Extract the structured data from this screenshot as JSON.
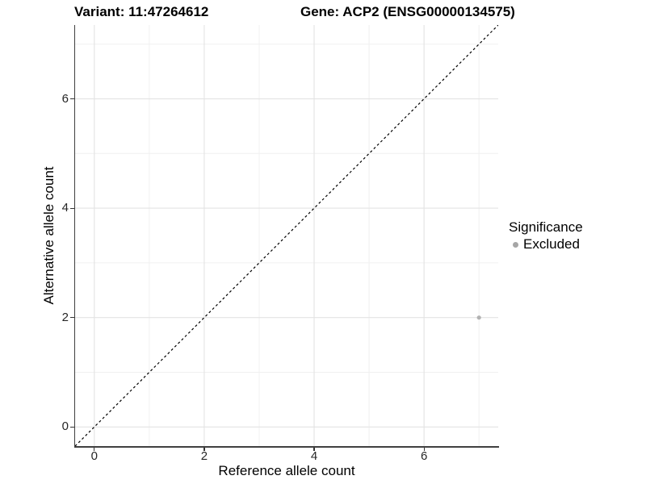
{
  "titles": {
    "variant": "Variant: 11:47264612",
    "gene": "Gene: ACP2 (ENSG00000134575)"
  },
  "chart_data": {
    "type": "scatter",
    "title_left": "Variant: 11:47264612",
    "title_right": "Gene: ACP2 (ENSG00000134575)",
    "xlabel": "Reference allele count",
    "ylabel": "Alternative allele count",
    "xlim": [
      -0.35,
      7.35
    ],
    "ylim": [
      -0.35,
      7.35
    ],
    "x_major_ticks": [
      0,
      2,
      4,
      6
    ],
    "y_major_ticks": [
      0,
      2,
      4,
      6
    ],
    "x_minor_gridlines": [
      1,
      3,
      5,
      7
    ],
    "y_minor_gridlines": [
      1,
      3,
      5,
      7
    ],
    "grid": "major and minor gridlines on white panel",
    "legend_position": "right",
    "series": [
      {
        "name": "Excluded",
        "color": "#b2b2b2",
        "points": [
          {
            "x": 7,
            "y": 2
          }
        ]
      }
    ],
    "reference_line": {
      "description": "identity line y = x",
      "style": "dashed",
      "color": "#000000",
      "x1": -0.35,
      "y1": -0.35,
      "x2": 7.35,
      "y2": 7.35
    },
    "legend": {
      "title": "Significance",
      "entries": [
        {
          "label": "Excluded",
          "color": "#a6a6a6"
        }
      ]
    }
  },
  "colors": {
    "grid_major": "#e3e3e3",
    "grid_minor": "#f0f0f0",
    "axis_line": "#404040",
    "tick_label": "#262626",
    "point": "#b2b2b2",
    "dashed_line": "#000000",
    "background": "#ffffff"
  }
}
